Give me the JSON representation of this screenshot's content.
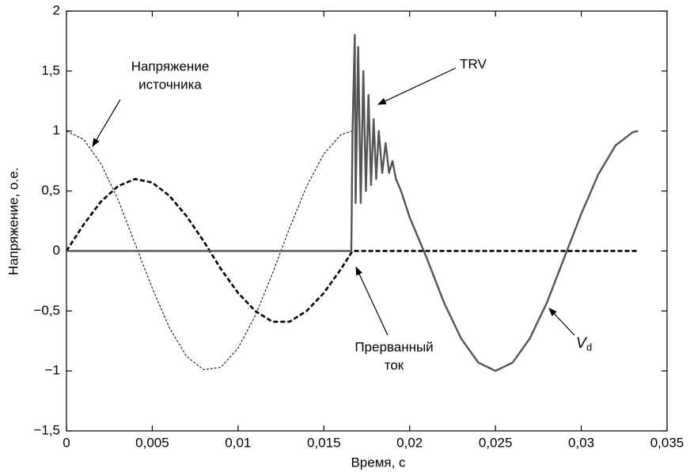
{
  "chart_data": {
    "type": "line",
    "xlabel": "Время, с",
    "ylabel": "Напряжение, о.е.",
    "xlim": [
      0,
      0.035
    ],
    "ylim": [
      -1.5,
      2
    ],
    "xticks": [
      0,
      {
        "value": 0.005,
        "label": "0,005"
      },
      {
        "value": 0.01,
        "label": "0,01"
      },
      {
        "value": 0.015,
        "label": "0,015"
      },
      {
        "value": 0.02,
        "label": "0,02"
      },
      {
        "value": 0.025,
        "label": "0,025"
      },
      {
        "value": 0.03,
        "label": "0,03"
      },
      {
        "value": 0.035,
        "label": "0,035"
      }
    ],
    "yticks": [
      {
        "value": -1.5,
        "label": "−1,5"
      },
      {
        "value": -1,
        "label": "−1"
      },
      {
        "value": -0.5,
        "label": "−0,5"
      },
      0,
      {
        "value": 0.5,
        "label": "0,5"
      },
      1,
      {
        "value": 1.5,
        "label": "1,5"
      },
      2
    ],
    "grid": false,
    "series": [
      {
        "color": "#000000",
        "style": "thin-dashed",
        "x": [
          0,
          0.001,
          0.002,
          0.003,
          0.004,
          0.005,
          0.006,
          0.007,
          0.008,
          0.009,
          0.01,
          0.011,
          0.012,
          0.013,
          0.014,
          0.015,
          0.016,
          0.01667
        ],
        "values": [
          1,
          0.93,
          0.73,
          0.43,
          0.06,
          -0.31,
          -0.64,
          -0.88,
          -0.99,
          -0.97,
          -0.81,
          -0.54,
          -0.19,
          0.19,
          0.54,
          0.81,
          0.97,
          1
        ]
      },
      {
        "color": "#000000",
        "style": "thick-dashed",
        "x": [
          0,
          0.001,
          0.002,
          0.003,
          0.004,
          0.005,
          0.006,
          0.007,
          0.008,
          0.009,
          0.01,
          0.011,
          0.012,
          0.013,
          0.014,
          0.015,
          0.016,
          0.01667,
          0.0333
        ],
        "values": [
          0,
          0.22,
          0.41,
          0.54,
          0.6,
          0.57,
          0.46,
          0.29,
          0.08,
          -0.15,
          -0.35,
          -0.5,
          -0.59,
          -0.59,
          -0.5,
          -0.35,
          -0.15,
          0,
          0
        ]
      },
      {
        "color": "#555555",
        "style": "solid",
        "x": [
          0,
          0.0166,
          0.01667,
          0.0168,
          0.01685,
          0.017,
          0.01715,
          0.0173,
          0.01745,
          0.0176,
          0.01775,
          0.0179,
          0.01805,
          0.0182,
          0.0184,
          0.0186,
          0.0188,
          0.019,
          0.0192,
          0.0195,
          0.02,
          0.0205,
          0.021,
          0.022,
          0.023,
          0.024,
          0.025,
          0.026,
          0.027,
          0.028,
          0.029,
          0.03,
          0.031,
          0.032,
          0.033,
          0.0333
        ],
        "values": [
          0,
          0,
          1,
          1.8,
          0.4,
          1.7,
          0.4,
          1.5,
          0.5,
          1.3,
          0.55,
          1.1,
          0.6,
          1,
          0.65,
          0.9,
          0.65,
          0.75,
          0.6,
          0.5,
          0.28,
          0.11,
          -0.06,
          -0.43,
          -0.73,
          -0.93,
          -1,
          -0.93,
          -0.73,
          -0.43,
          -0.06,
          0.31,
          0.64,
          0.88,
          0.99,
          1
        ]
      }
    ],
    "annotations": [
      {
        "text": [
          "Напряжение",
          "источника"
        ]
      },
      {
        "text": [
          "TRV"
        ]
      },
      {
        "text": [
          "Прерванный",
          "ток"
        ]
      },
      {
        "text": [
          "V"
        ],
        "sub": "d"
      }
    ]
  }
}
